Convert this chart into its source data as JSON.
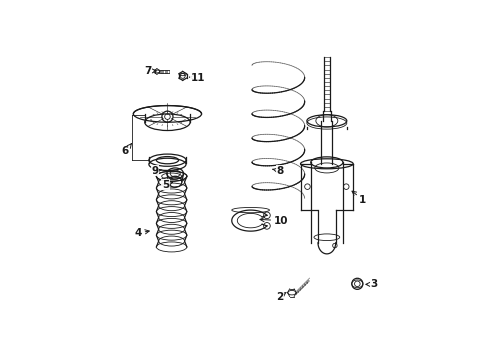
{
  "background_color": "#ffffff",
  "line_color": "#1a1a1a",
  "figsize": [
    4.89,
    3.6
  ],
  "dpi": 100,
  "label_positions": {
    "1": [
      0.905,
      0.435,
      0.855,
      0.475
    ],
    "2": [
      0.605,
      0.085,
      0.638,
      0.108
    ],
    "3": [
      0.945,
      0.13,
      0.912,
      0.13
    ],
    "4": [
      0.095,
      0.315,
      0.148,
      0.325
    ],
    "5": [
      0.193,
      0.49,
      0.222,
      0.5
    ],
    "6": [
      0.048,
      0.61,
      0.072,
      0.64
    ],
    "7": [
      0.13,
      0.9,
      0.163,
      0.9
    ],
    "8": [
      0.605,
      0.54,
      0.568,
      0.548
    ],
    "9": [
      0.155,
      0.54,
      0.18,
      0.543
    ],
    "10": [
      0.61,
      0.36,
      0.52,
      0.365
    ],
    "11": [
      0.31,
      0.875,
      0.277,
      0.878
    ]
  }
}
